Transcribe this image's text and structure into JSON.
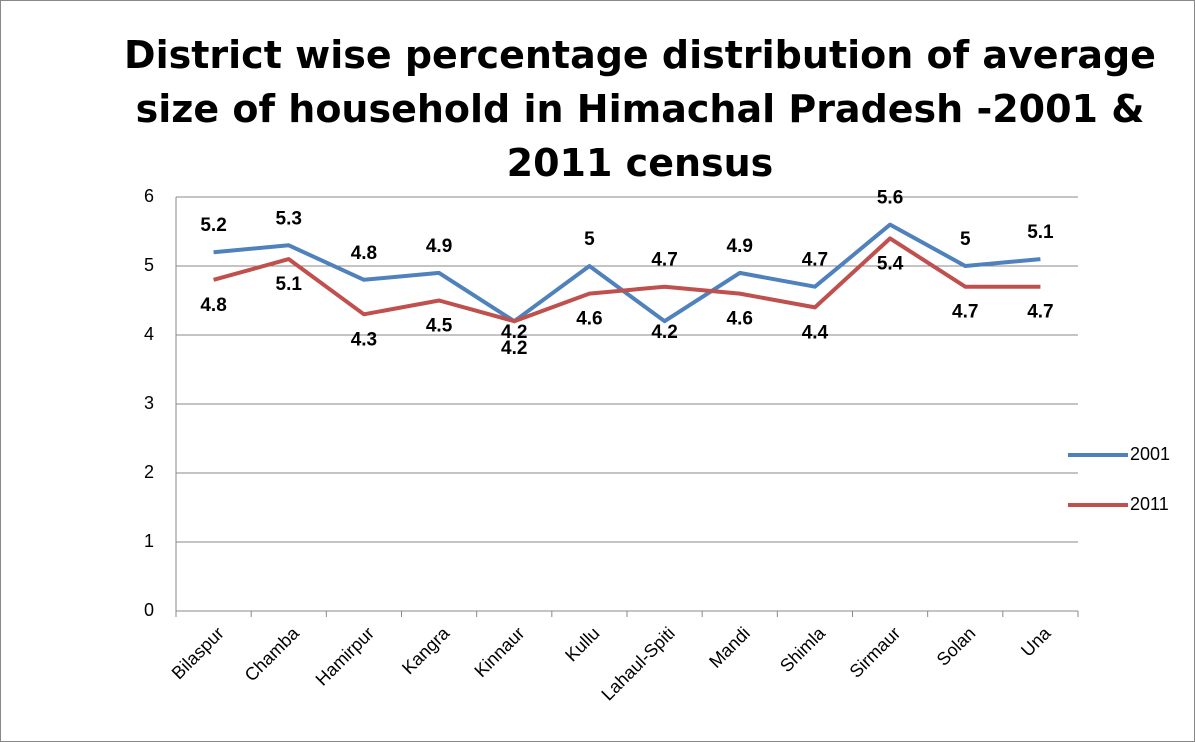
{
  "chart_data": {
    "type": "line",
    "title": "District wise percentage distribution of average size of household in Himachal Pradesh -2001 & 2011 census",
    "categories": [
      "Bilaspur",
      "Chamba",
      "Hamirpur",
      "Kangra",
      "Kinnaur",
      "Kullu",
      "Lahaul-Spiti",
      "Mandi",
      "Shimla",
      "Sirmaur",
      "Solan",
      "Una"
    ],
    "series": [
      {
        "name": "2001",
        "color": "#4f81bd",
        "values": [
          5.2,
          5.3,
          4.8,
          4.9,
          4.2,
          5,
          4.2,
          4.9,
          4.7,
          5.6,
          5,
          5.1
        ]
      },
      {
        "name": "2011",
        "color": "#c0504d",
        "values": [
          4.8,
          5.1,
          4.3,
          4.5,
          4.2,
          4.6,
          4.7,
          4.6,
          4.4,
          5.4,
          4.7,
          4.7
        ]
      }
    ],
    "ylim": [
      0,
      6
    ],
    "yticks": [
      0,
      1,
      2,
      3,
      4,
      5,
      6
    ],
    "grid": true,
    "legend": "right"
  }
}
